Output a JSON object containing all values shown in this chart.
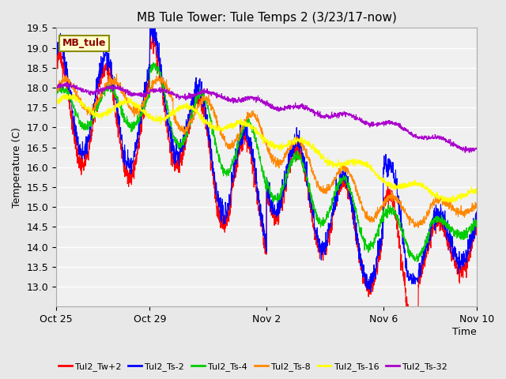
{
  "title": "MB Tule Tower: Tule Temps 2 (3/23/17-now)",
  "xlabel": "Time",
  "ylabel": "Temperature (C)",
  "ylim": [
    12.5,
    19.5
  ],
  "yticks": [
    13.0,
    13.5,
    14.0,
    14.5,
    15.0,
    15.5,
    16.0,
    16.5,
    17.0,
    17.5,
    18.0,
    18.5,
    19.0,
    19.5
  ],
  "background_color": "#e8e8e8",
  "plot_bg_color": "#f0f0f0",
  "grid_color": "#ffffff",
  "series_colors": {
    "Tul2_Tw+2": "#ff0000",
    "Tul2_Ts-2": "#0000ff",
    "Tul2_Ts-4": "#00cc00",
    "Tul2_Ts-8": "#ff8800",
    "Tul2_Ts-16": "#ffff00",
    "Tul2_Ts-32": "#aa00cc"
  },
  "legend_label_color": "#8b0000",
  "legend_box_color": "#ffffcc",
  "legend_box_edge": "#8b8b00",
  "annotation_text": "MB_tule",
  "xtick_labels": [
    "Oct 25",
    "Oct 29",
    "Nov 2",
    "Nov 6",
    "Nov 10"
  ],
  "xtick_positions": [
    0,
    4,
    9,
    14,
    18
  ]
}
